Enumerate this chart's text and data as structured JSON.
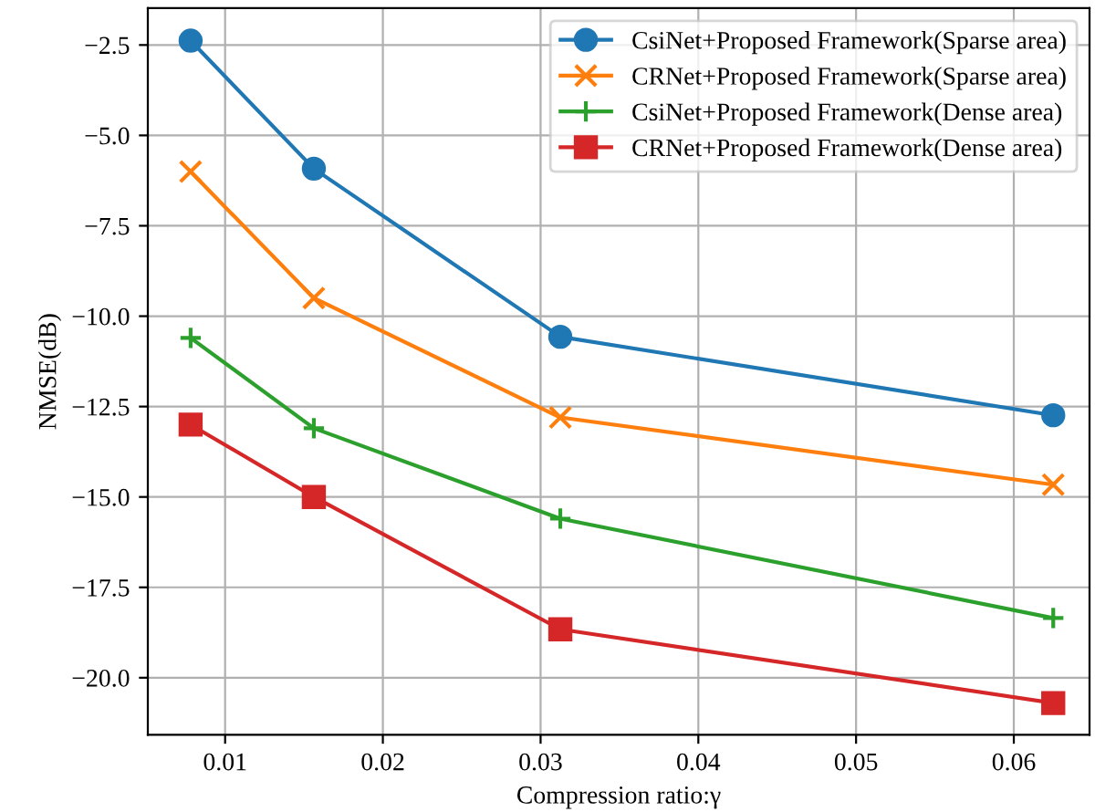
{
  "chart_data": {
    "type": "line",
    "xlabel": "Compression ratio:γ",
    "ylabel": "NMSE(dB)",
    "x": [
      0.0078125,
      0.015625,
      0.03125,
      0.0625
    ],
    "series": [
      {
        "name": "CsiNet+Proposed Framework(Sparse area)",
        "color": "#1f77b4",
        "marker": "circle",
        "values": [
          -2.38,
          -5.92,
          -10.57,
          -12.74
        ]
      },
      {
        "name": "CRNet+Proposed Framework(Sparse area)",
        "color": "#ff7f0e",
        "marker": "cross",
        "values": [
          -6.0,
          -9.5,
          -12.8,
          -14.66
        ]
      },
      {
        "name": "CsiNet+Proposed Framework(Dense area)",
        "color": "#2ca02c",
        "marker": "plus",
        "values": [
          -10.6,
          -13.1,
          -15.6,
          -18.35
        ]
      },
      {
        "name": "CRNet+Proposed Framework(Dense area)",
        "color": "#d62728",
        "marker": "square",
        "values": [
          -13.0,
          -15.0,
          -18.66,
          -20.7
        ]
      }
    ],
    "xlim": [
      0.0051,
      0.0648
    ],
    "xticks": [
      {
        "value": 0.01,
        "label": "0.01"
      },
      {
        "value": 0.02,
        "label": "0.02"
      },
      {
        "value": 0.03,
        "label": "0.03"
      },
      {
        "value": 0.04,
        "label": "0.04"
      },
      {
        "value": 0.05,
        "label": "0.05"
      },
      {
        "value": 0.06,
        "label": "0.06"
      }
    ],
    "ylim": [
      -21.58,
      -1.48
    ],
    "yticks": [
      {
        "value": -2.5,
        "label": "−2.5"
      },
      {
        "value": -5,
        "label": "−5.0"
      },
      {
        "value": -7.5,
        "label": "−7.5"
      },
      {
        "value": -10,
        "label": "−10.0"
      },
      {
        "value": -12.5,
        "label": "−12.5"
      },
      {
        "value": -15,
        "label": "−15.0"
      },
      {
        "value": -17.5,
        "label": "−17.5"
      },
      {
        "value": -20,
        "label": "−20.0"
      }
    ],
    "grid": true,
    "legend": "top right",
    "line_style": "solid"
  }
}
